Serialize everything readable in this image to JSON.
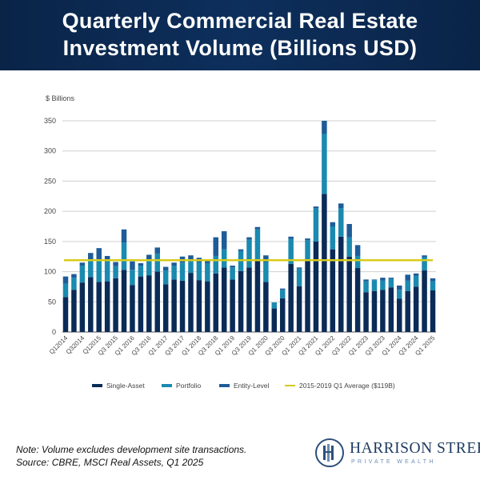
{
  "header": {
    "title_line1": "Quarterly  Commercial Real Estate",
    "title_line2": "Investment Volume (Billions USD)"
  },
  "chart_data": {
    "type": "bar",
    "stacked": true,
    "ylabel": "$ Billions",
    "ylim": [
      0,
      350
    ],
    "yticks": [
      0,
      50,
      100,
      150,
      200,
      250,
      300,
      350
    ],
    "grid": true,
    "legend_position": "bottom",
    "categories": [
      "Q1 2014",
      "Q2 2014",
      "Q3 2014",
      "Q4 2014",
      "Q1 2015",
      "Q2 2015",
      "Q3 2015",
      "Q4 2015",
      "Q1 2016",
      "Q2 2016",
      "Q3 2016",
      "Q4 2016",
      "Q1 2017",
      "Q2 2017",
      "Q3 2017",
      "Q4 2017",
      "Q1 2018",
      "Q2 2018",
      "Q3 2018",
      "Q4 2018",
      "Q1 2019",
      "Q2 2019",
      "Q3 2019",
      "Q4 2019",
      "Q1 2020",
      "Q2 2020",
      "Q3 2020",
      "Q4 2020",
      "Q1 2021",
      "Q2 2021",
      "Q3 2021",
      "Q4 2021",
      "Q1 2022",
      "Q2 2022",
      "Q3 2022",
      "Q4 2022",
      "Q1 2023",
      "Q2 2023",
      "Q3 2023",
      "Q4 2023",
      "Q1 2024",
      "Q2 2024",
      "Q3 2024",
      "Q4 2024",
      "Q1 2025"
    ],
    "tick_labels": [
      "Q12014",
      "Q32014",
      "Q12015",
      "Q3 2015",
      "Q1 2016",
      "Q3 2016",
      "Q1 2017",
      "Q3 2017",
      "Q1 2018",
      "Q3 2018",
      "Q1 2019",
      "Q3 2019",
      "Q1 2020",
      "Q3 2020",
      "Q1 2021",
      "Q3 2021",
      "Q1 2022",
      "Q3 2022",
      "Q1 2023",
      "Q3 2023",
      "Q1 2024",
      "Q3 2024",
      "Q1 2025"
    ],
    "series": [
      {
        "name": "Single-Asset",
        "color": "#0b2b57",
        "values": [
          58,
          70,
          82,
          91,
          83,
          84,
          89,
          103,
          78,
          92,
          94,
          100,
          79,
          87,
          85,
          98,
          86,
          84,
          97,
          107,
          87,
          101,
          107,
          120,
          83,
          39,
          56,
          113,
          76,
          118,
          150,
          229,
          137,
          158,
          125,
          106,
          66,
          68,
          70,
          74,
          55,
          68,
          75,
          102,
          69
        ]
      },
      {
        "name": "Portfolio",
        "color": "#1a8ab0",
        "values": [
          22,
          20,
          28,
          28,
          35,
          34,
          20,
          45,
          25,
          18,
          25,
          30,
          23,
          23,
          30,
          22,
          30,
          30,
          29,
          30,
          20,
          33,
          46,
          50,
          33,
          10,
          14,
          41,
          29,
          34,
          55,
          99,
          38,
          47,
          32,
          20,
          18,
          18,
          15,
          14,
          15,
          17,
          18,
          22,
          15
        ]
      },
      {
        "name": "Entity-Level",
        "color": "#1e5c98",
        "values": [
          12,
          6,
          5,
          12,
          21,
          8,
          7,
          22,
          14,
          4,
          9,
          10,
          6,
          5,
          10,
          7,
          7,
          4,
          31,
          30,
          3,
          3,
          4,
          4,
          11,
          0,
          2,
          4,
          2,
          3,
          3,
          22,
          7,
          8,
          22,
          18,
          3,
          1,
          5,
          2,
          7,
          10,
          4,
          3,
          5
        ]
      }
    ],
    "reference_line": {
      "name": "2015-2019 Q1 Average ($119B)",
      "value": 119,
      "color": "#d8cb1c"
    }
  },
  "footer": {
    "note": "Note: Volume excludes development site transactions.",
    "source": "Source: CBRE, MSCI Real Assets, Q1 2025"
  },
  "logo": {
    "name": "HARRISON STREET",
    "sub": "PRIVATE WEALTH"
  }
}
